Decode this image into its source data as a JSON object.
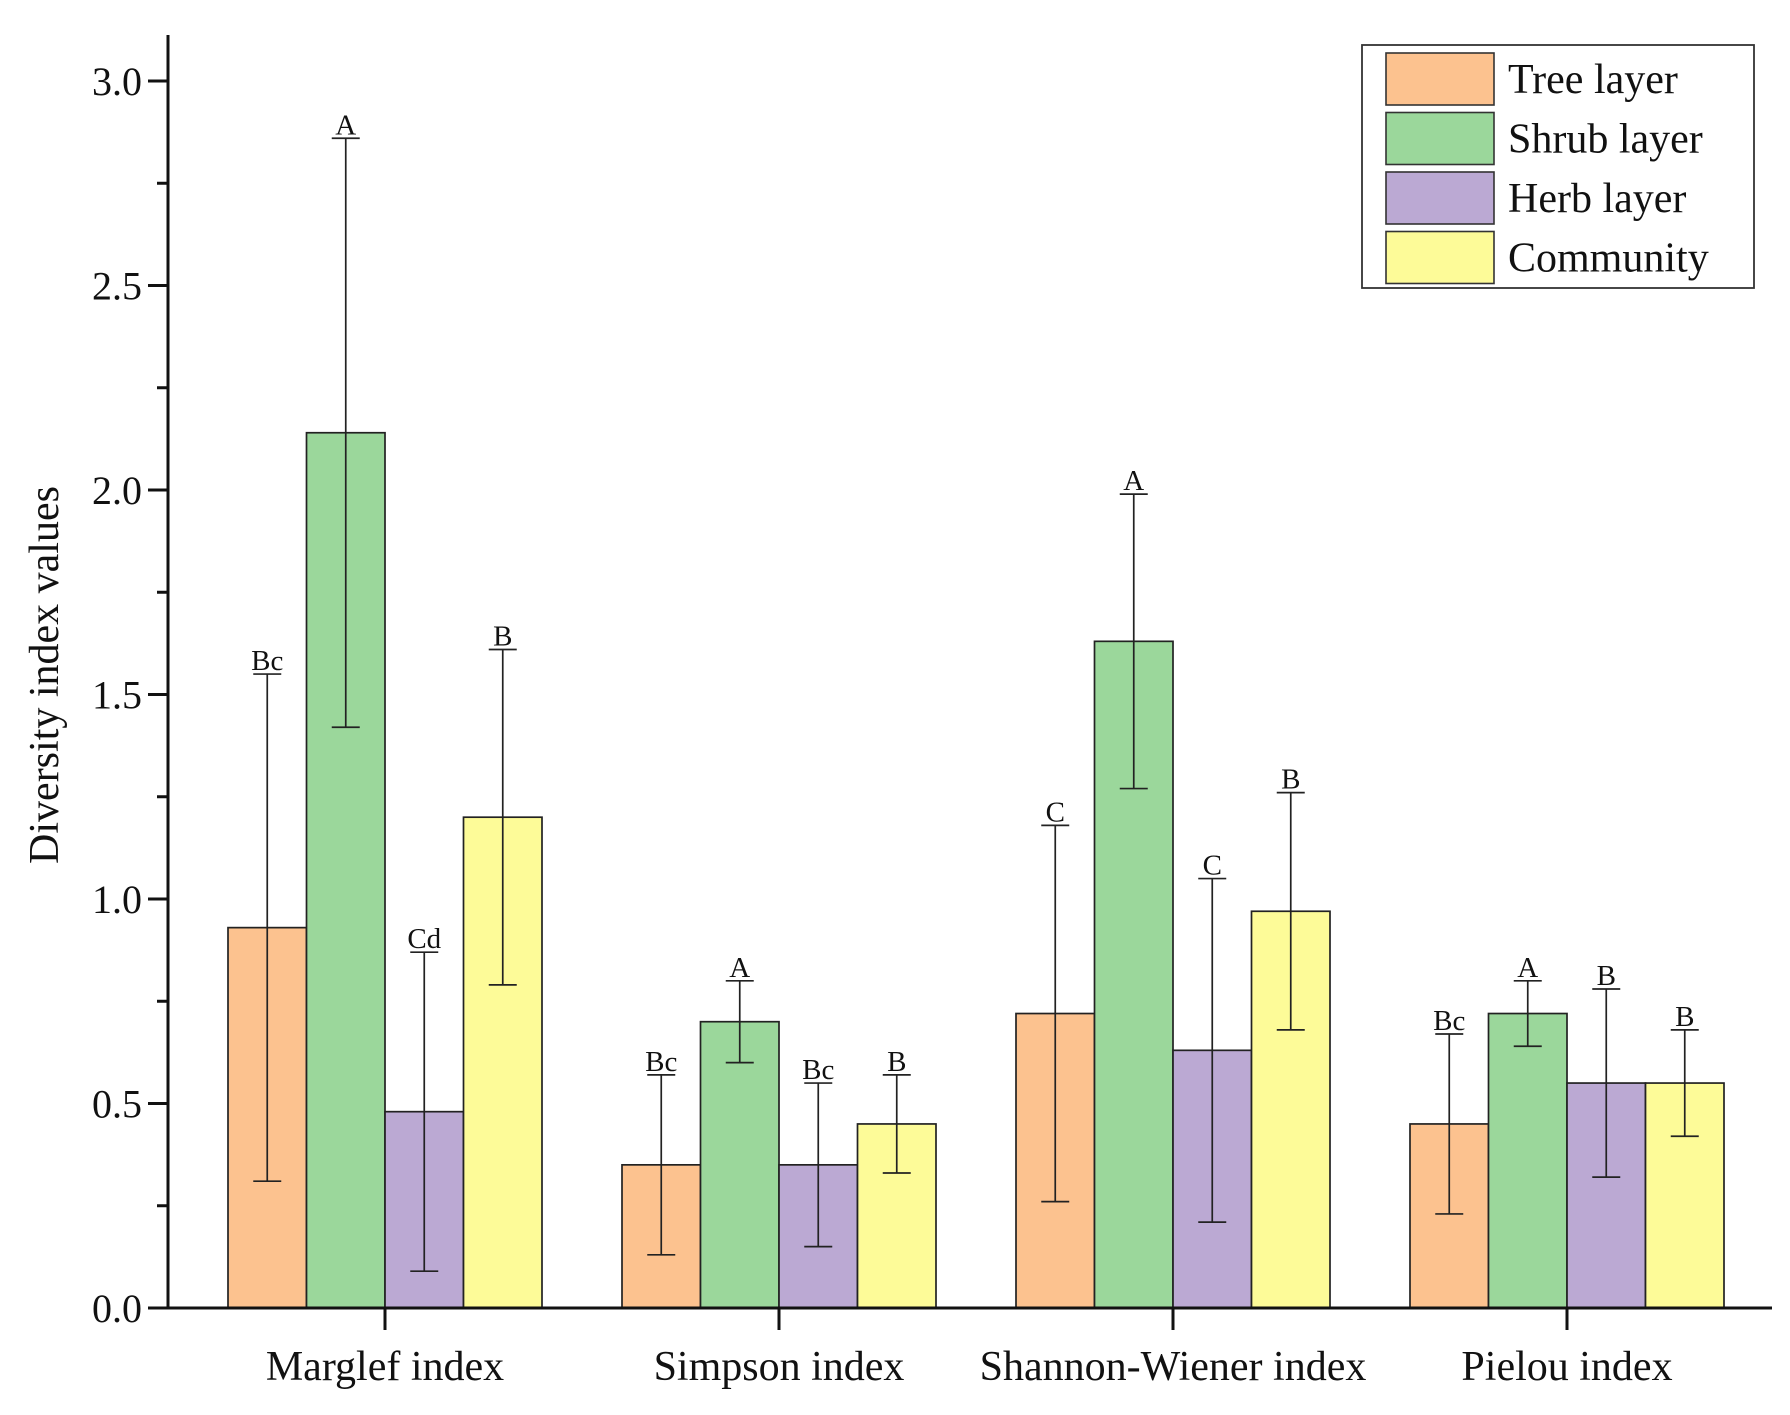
{
  "chart_data": {
    "type": "bar",
    "title": "",
    "xlabel": "",
    "ylabel": "Diversity index values",
    "ylim": [
      0,
      3.1
    ],
    "yticks": [
      "0.0",
      "0.5",
      "1.0",
      "1.5",
      "2.0",
      "2.5",
      "3.0"
    ],
    "ytick_values": [
      0,
      0.5,
      1.0,
      1.5,
      2.0,
      2.5,
      3.0
    ],
    "grid": false,
    "legend_position": "top-right",
    "categories": [
      "Marglef index",
      "Simpson index",
      "Shannon-Wiener index",
      "Pielou index"
    ],
    "series": [
      {
        "name": "Tree layer",
        "color": "#fcc28f",
        "values": [
          0.93,
          0.35,
          0.72,
          0.45
        ],
        "errors": [
          0.62,
          0.22,
          0.46,
          0.22
        ],
        "labels": [
          "Bc",
          "Bc",
          "C",
          "Bc"
        ]
      },
      {
        "name": "Shrub layer",
        "color": "#9bd79b",
        "values": [
          2.14,
          0.7,
          1.63,
          0.72
        ],
        "errors": [
          0.72,
          0.1,
          0.36,
          0.08
        ],
        "labels": [
          "A",
          "A",
          "A",
          "A"
        ]
      },
      {
        "name": "Herb layer",
        "color": "#bba9d3",
        "values": [
          0.48,
          0.35,
          0.63,
          0.55
        ],
        "errors": [
          0.39,
          0.2,
          0.42,
          0.23
        ],
        "labels": [
          "Cd",
          "Bc",
          "C",
          "B"
        ]
      },
      {
        "name": "Community",
        "color": "#fdfb98",
        "values": [
          1.2,
          0.45,
          0.97,
          0.55
        ],
        "errors": [
          0.41,
          0.12,
          0.29,
          0.13
        ],
        "labels": [
          "B",
          "B",
          "B",
          "B"
        ]
      }
    ]
  }
}
